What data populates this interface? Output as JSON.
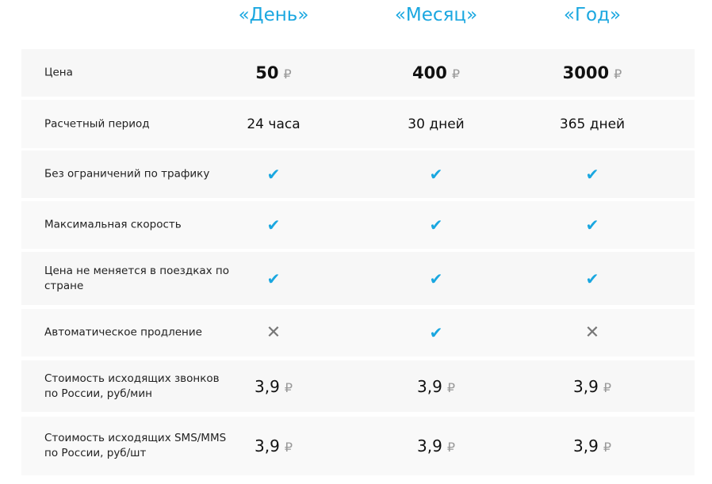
{
  "plans": [
    "«День»",
    "«Месяц»",
    "«Год»"
  ],
  "currency": "₽",
  "rows": [
    {
      "label": "Цена",
      "type": "price",
      "values": [
        "50",
        "400",
        "3000"
      ]
    },
    {
      "label": "Расчетный период",
      "type": "text",
      "values": [
        "24 часа",
        "30 дней",
        "365 дней"
      ]
    },
    {
      "label": "Без ограничений по трафику",
      "type": "bool",
      "values": [
        true,
        true,
        true
      ]
    },
    {
      "label": "Максимальная скорость",
      "type": "bool",
      "values": [
        true,
        true,
        true
      ]
    },
    {
      "label": "Цена не меняется в поездках по стране",
      "type": "bool",
      "values": [
        true,
        true,
        true
      ]
    },
    {
      "label": "Автоматическое продление",
      "type": "bool",
      "values": [
        false,
        true,
        false
      ]
    },
    {
      "label": "Стоимость исходящих звонков по России, руб/мин",
      "type": "money",
      "values": [
        "3,9",
        "3,9",
        "3,9"
      ]
    },
    {
      "label": "Стоимость исходящих SMS/MMS по России, руб/шт",
      "type": "money",
      "values": [
        "3,9",
        "3,9",
        "3,9"
      ]
    }
  ],
  "icons": {
    "yes": "check-icon",
    "no": "cross-icon"
  },
  "colors": {
    "accent": "#1aa7e0"
  }
}
